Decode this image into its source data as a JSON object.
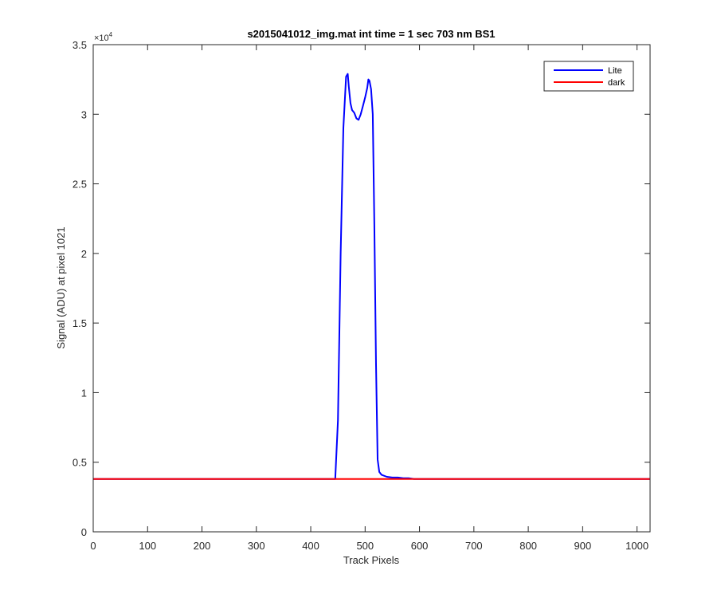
{
  "chart_data": {
    "type": "line",
    "title": "s2015041012_img.mat int time = 1 sec  703 nm BS1",
    "xlabel": "Track Pixels",
    "ylabel": "Signal (ADU) at pixel 1021",
    "xlim": [
      0,
      1024
    ],
    "ylim": [
      0,
      35000
    ],
    "x_ticks": [
      0,
      100,
      200,
      300,
      400,
      500,
      600,
      700,
      800,
      900,
      1000
    ],
    "y_ticks": [
      0,
      5000,
      10000,
      15000,
      20000,
      25000,
      30000,
      35000
    ],
    "y_tick_labels": [
      "0",
      "0.5",
      "1",
      "1.5",
      "2",
      "2.5",
      "3",
      "3.5"
    ],
    "y_exponent_base": "×10",
    "y_exponent_power": "4",
    "grid": false,
    "legend_position": "top-right",
    "series": [
      {
        "name": "Lite",
        "color": "#0000ff",
        "x": [
          0,
          100,
          200,
          300,
          400,
          445,
          450,
          455,
          460,
          465,
          468,
          470,
          473,
          476,
          480,
          484,
          488,
          492,
          496,
          500,
          504,
          506,
          508,
          511,
          514,
          517,
          520,
          523,
          526,
          530,
          540,
          550,
          560,
          570,
          580,
          590,
          600,
          700,
          800,
          900,
          1024
        ],
        "y": [
          3800,
          3800,
          3800,
          3800,
          3800,
          3800,
          8000,
          20000,
          29000,
          32700,
          32900,
          32000,
          30800,
          30300,
          30100,
          29700,
          29600,
          30000,
          30600,
          31200,
          31900,
          32500,
          32400,
          31800,
          30000,
          22000,
          12000,
          5200,
          4300,
          4100,
          3950,
          3900,
          3900,
          3850,
          3850,
          3800,
          3800,
          3800,
          3800,
          3800,
          3800
        ]
      },
      {
        "name": "dark",
        "color": "#ff0000",
        "x": [
          0,
          1024
        ],
        "y": [
          3800,
          3800
        ]
      }
    ]
  }
}
